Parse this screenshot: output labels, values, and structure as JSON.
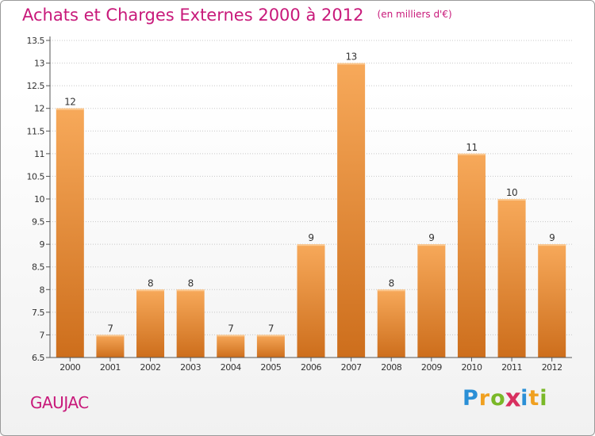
{
  "header": {
    "title": "Achats et Charges Externes 2000 à 2012",
    "subtitle": "(en milliers d'€)"
  },
  "footer": {
    "location": "GAUJAC",
    "logo_letters": [
      "P",
      "r",
      "o",
      "x",
      "i",
      "t",
      "i"
    ],
    "logo_colors": [
      "#2a8fd6",
      "#f0a020",
      "#7ab828",
      "#d83060",
      "#2a8fd6",
      "#f0a020",
      "#7ab828"
    ]
  },
  "colors": {
    "title": "#c8197a",
    "bar_top": "#f7a95a",
    "bar_bottom": "#cd6e1c",
    "axis": "#555555",
    "grid": "#c8c8c8",
    "label": "#333333"
  },
  "chart_data": {
    "type": "bar",
    "title": "Achats et Charges Externes 2000 à 2012",
    "subtitle": "(en milliers d'€)",
    "xlabel": "",
    "ylabel": "",
    "categories": [
      "2000",
      "2001",
      "2002",
      "2003",
      "2004",
      "2005",
      "2006",
      "2007",
      "2008",
      "2009",
      "2010",
      "2011",
      "2012"
    ],
    "values": [
      12,
      7,
      8,
      8,
      7,
      7,
      9,
      13,
      8,
      9,
      11,
      10,
      9
    ],
    "data_labels": [
      "12",
      "7",
      "8",
      "8",
      "7",
      "7",
      "9",
      "13",
      "8",
      "9",
      "11",
      "10",
      "9"
    ],
    "ylim": [
      6.5,
      13.5
    ],
    "yticks": [
      6.5,
      7,
      7.5,
      8,
      8.5,
      9,
      9.5,
      10,
      10.5,
      11,
      11.5,
      12,
      12.5,
      13,
      13.5
    ],
    "ytick_labels": [
      "6.5",
      "7",
      "7.5",
      "8",
      "8.5",
      "9",
      "9.5",
      "10",
      "10.5",
      "11",
      "11.5",
      "12",
      "12.5",
      "13",
      "13.5"
    ],
    "grid": true
  }
}
